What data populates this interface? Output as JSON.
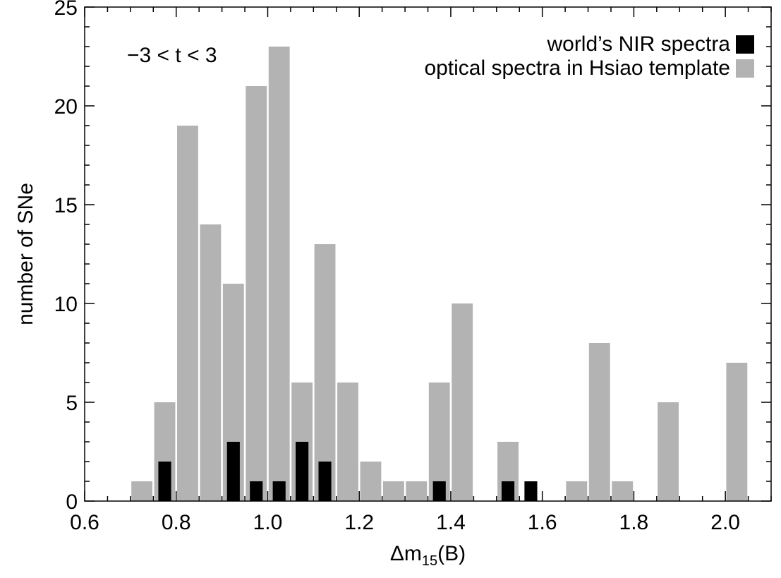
{
  "chart_data": {
    "type": "bar",
    "xlabel_prefix": "Δm",
    "xlabel_subscript": "15",
    "xlabel_suffix": "(B)",
    "ylabel": "number of SNe",
    "annotation": "−3 < t < 3",
    "xlim": [
      0.6,
      2.1
    ],
    "ylim": [
      0,
      25
    ],
    "x_ticks": [
      "0.6",
      "0.8",
      "1.0",
      "1.2",
      "1.4",
      "1.6",
      "1.8",
      "2.0"
    ],
    "y_ticks": [
      "0",
      "5",
      "10",
      "15",
      "20",
      "25"
    ],
    "legend_position": "top-right",
    "series": [
      {
        "name": "optical spectra in Hsiao template",
        "color": "#b3b3b3",
        "x": [
          0.725,
          0.775,
          0.825,
          0.875,
          0.925,
          0.975,
          1.025,
          1.075,
          1.125,
          1.175,
          1.225,
          1.275,
          1.325,
          1.375,
          1.425,
          1.525,
          1.675,
          1.725,
          1.775,
          1.875,
          2.025
        ],
        "values": [
          1,
          5,
          19,
          14,
          11,
          21,
          23,
          6,
          13,
          6,
          2,
          1,
          1,
          6,
          10,
          3,
          1,
          8,
          1,
          5,
          7
        ]
      },
      {
        "name": "world’s NIR spectra",
        "color": "#000000",
        "x": [
          0.775,
          0.925,
          0.975,
          1.025,
          1.075,
          1.125,
          1.375,
          1.525,
          1.575
        ],
        "values": [
          2,
          3,
          1,
          1,
          3,
          2,
          1,
          1,
          1
        ]
      }
    ]
  }
}
